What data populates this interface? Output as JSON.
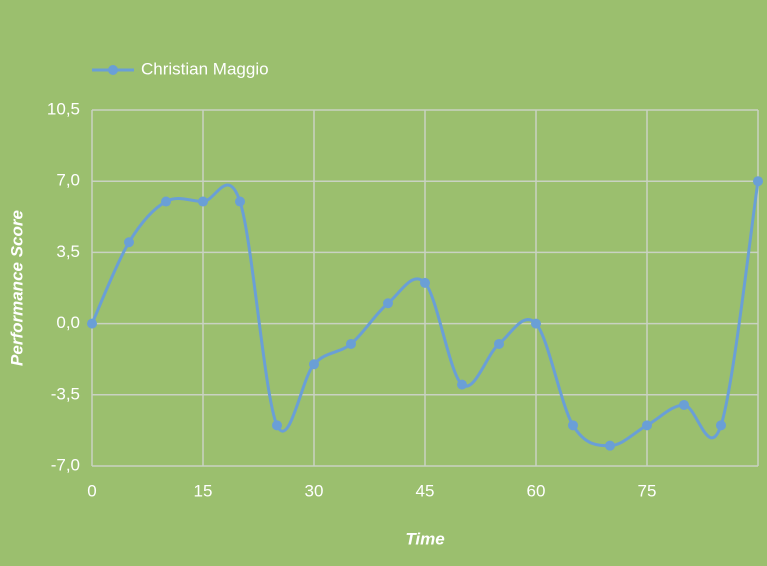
{
  "chart_data": {
    "type": "line",
    "legend": "top-left",
    "x_label": "Time",
    "y_label": "Performance Score",
    "x": [
      0,
      5,
      10,
      15,
      20,
      25,
      30,
      35,
      40,
      45,
      50,
      55,
      60,
      65,
      70,
      75,
      80,
      85,
      90
    ],
    "series": [
      {
        "name": "Christian Maggio",
        "color": "#6a9fd6",
        "values": [
          0,
          4,
          6,
          6,
          6,
          -5,
          -2,
          -1,
          1,
          2,
          -3,
          -1,
          0,
          -5,
          -6,
          -5,
          -4,
          -5,
          7
        ]
      }
    ],
    "xlim": [
      0,
      90
    ],
    "xticks": [
      0,
      15,
      30,
      45,
      60,
      75
    ],
    "ylim": [
      -7,
      10.5
    ],
    "yticks": [
      {
        "value": -7,
        "label": "-7,0"
      },
      {
        "value": -3.5,
        "label": "-3,5"
      },
      {
        "value": 0,
        "label": "0,0"
      },
      {
        "value": 3.5,
        "label": "3,5"
      },
      {
        "value": 7,
        "label": "7,0"
      },
      {
        "value": 10.5,
        "label": "10,5"
      }
    ],
    "grid": true
  }
}
